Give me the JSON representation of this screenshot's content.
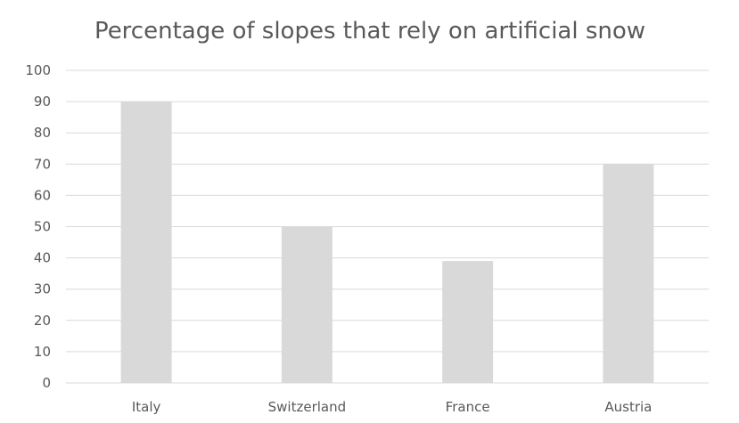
{
  "chart_data": {
    "type": "bar",
    "title": "Percentage of slopes that rely on artificial snow",
    "xlabel": "",
    "ylabel": "",
    "categories": [
      "Italy",
      "Switzerland",
      "France",
      "Austria"
    ],
    "values": [
      90,
      50,
      39,
      70
    ],
    "ylim": [
      0,
      100
    ],
    "yticks": [
      0,
      10,
      20,
      30,
      40,
      50,
      60,
      70,
      80,
      90,
      100
    ],
    "grid": true,
    "legend": "none",
    "bar_color": "#d9d9d9"
  }
}
